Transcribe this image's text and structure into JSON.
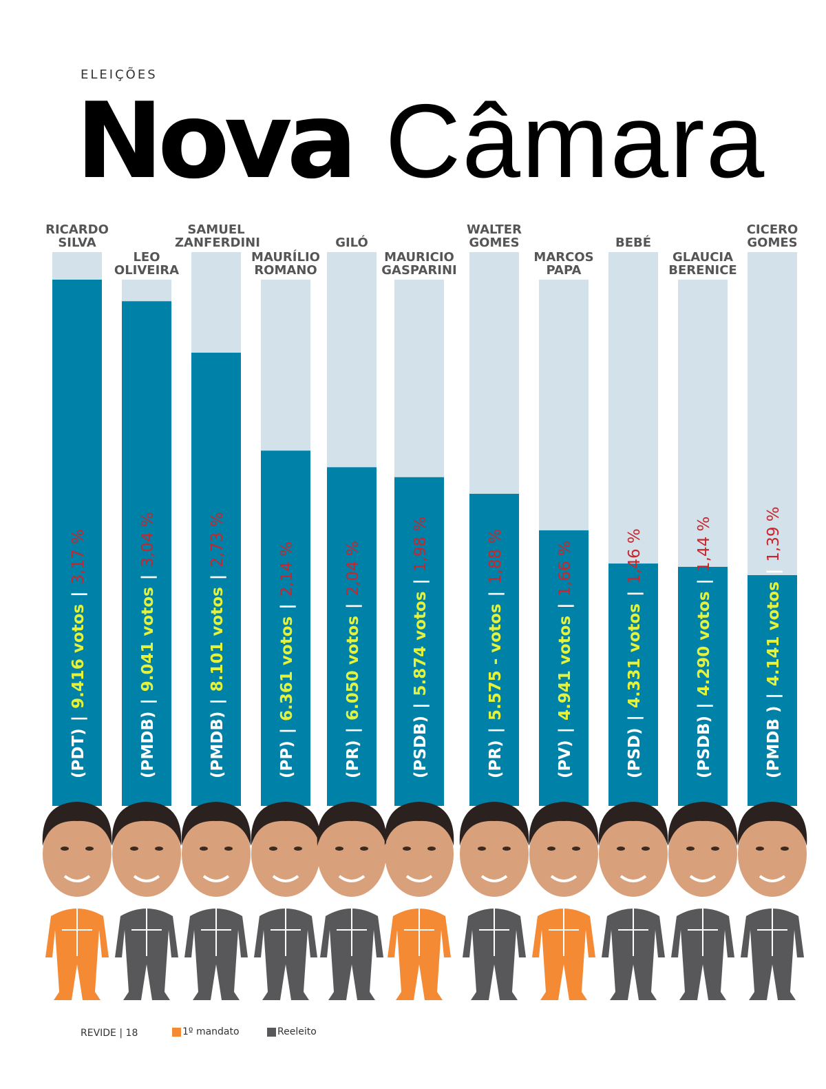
{
  "kicker": "ELEIÇÕES",
  "title_bold": "Nova",
  "title_light": "Câmara",
  "footer": {
    "publication": "REVIDE",
    "separator": "|",
    "page": "18"
  },
  "chart_data": {
    "type": "bar",
    "categories": [
      "RICARDO SILVA",
      "LEO OLIVEIRA",
      "SAMUEL ZANFERDINI",
      "MAURÍLIO ROMANO",
      "GILÓ",
      "MAURICIO GASPARINI",
      "WALTER GOMES",
      "MARCOS PAPA",
      "BEBÉ",
      "GLAUCIA BERENICE",
      "CICERO GOMES"
    ],
    "parties": [
      "(PDT)",
      "(PMDB)",
      "(PMDB)",
      "(PP)",
      "(PR)",
      "(PSDB)",
      "(PR)",
      "(PV)",
      "(PSD)",
      "(PSDB)",
      "(PMDB )"
    ],
    "votes": [
      "9.416 votos",
      "9.041 votos",
      "8.101 votos",
      "6.361 votos",
      "6.050 votos",
      "5.874 votos",
      "5.575 - votos",
      "4.941 votos",
      "4.331 votos",
      "4.290 votos",
      "4.141 votos"
    ],
    "values": [
      3.17,
      3.04,
      2.73,
      2.14,
      2.04,
      1.98,
      1.88,
      1.66,
      1.46,
      1.44,
      1.39
    ],
    "value_labels": [
      "3,17 %",
      "3,04 %",
      "2,73 %",
      "2,14 %",
      "2,04 %",
      "1,98 %",
      "1,88 %",
      "1,66 %",
      "1,46 %",
      "1,44 %",
      "1,39 %"
    ],
    "separator": "|",
    "status": [
      0,
      1,
      1,
      1,
      1,
      0,
      1,
      0,
      1,
      1,
      1
    ],
    "color": "#0081a7",
    "track_color": "#d3e2ea",
    "legend": [
      {
        "name": "1º mandato",
        "color": "#f58a35"
      },
      {
        "name": "Reeleito",
        "color": "#58585a"
      }
    ]
  }
}
